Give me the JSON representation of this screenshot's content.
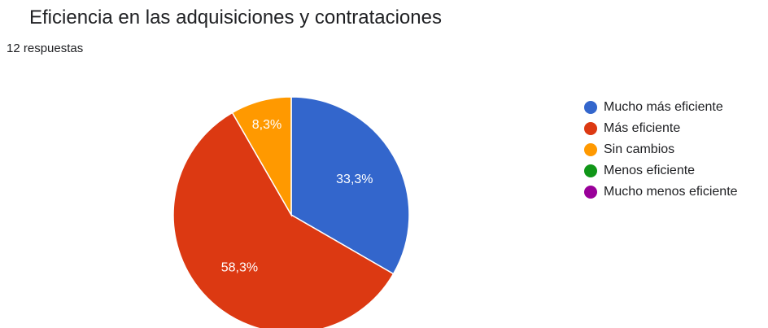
{
  "header": {
    "title": "Eficiencia en las adquisiciones y contrataciones",
    "responses": "12 respuestas"
  },
  "chart_data": {
    "type": "pie",
    "title": "Eficiencia en las adquisiciones y contrataciones",
    "categories": [
      "Mucho más eficiente",
      "Más eficiente",
      "Sin cambios",
      "Menos eficiente",
      "Mucho menos eficiente"
    ],
    "values": [
      4,
      7,
      1,
      0,
      0
    ],
    "labels": [
      "33,3%",
      "58,3%",
      "8,3%",
      "",
      ""
    ],
    "colors": [
      "#3366cc",
      "#dc3912",
      "#ff9900",
      "#109618",
      "#990099"
    ],
    "legend_position": "right"
  }
}
